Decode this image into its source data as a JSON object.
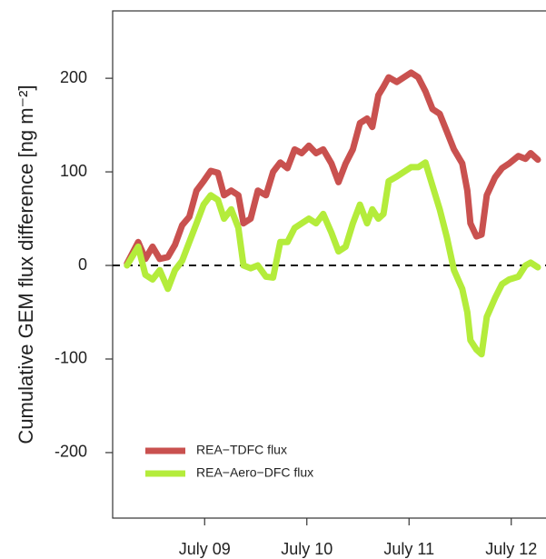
{
  "chart_data": {
    "type": "line",
    "y_label": "Cumulative GEM flux difference [ng m⁻²]",
    "x": [
      8.24,
      8.35,
      8.42,
      8.49,
      8.56,
      8.64,
      8.71,
      8.78,
      8.85,
      8.92,
      8.99,
      9.06,
      9.13,
      9.19,
      9.26,
      9.33,
      9.38,
      9.45,
      9.52,
      9.6,
      9.67,
      9.74,
      9.81,
      9.88,
      9.95,
      10.02,
      10.09,
      10.16,
      10.24,
      10.31,
      10.38,
      10.45,
      10.52,
      10.59,
      10.64,
      10.7,
      10.75,
      10.8,
      10.88,
      10.95,
      11.02,
      11.09,
      11.16,
      11.23,
      11.3,
      11.37,
      11.44,
      11.52,
      11.57,
      11.6,
      11.66,
      11.71,
      11.76,
      11.84,
      11.91,
      11.98,
      12.07,
      12.14,
      12.19,
      12.26
    ],
    "series": [
      {
        "name": "REA−TDFC flux",
        "color": "#c9514f",
        "values": [
          2,
          25,
          7,
          20,
          7,
          9,
          22,
          43,
          52,
          80,
          90,
          101,
          99,
          75,
          80,
          75,
          45,
          50,
          80,
          75,
          100,
          110,
          104,
          124,
          120,
          128,
          120,
          124,
          109,
          89,
          109,
          124,
          152,
          157,
          148,
          182,
          191,
          201,
          196,
          201,
          206,
          201,
          186,
          167,
          162,
          143,
          124,
          109,
          80,
          45,
          31,
          33,
          75,
          94,
          104,
          109,
          117,
          114,
          120,
          113
        ]
      },
      {
        "name": "REA−Aero−DFC flux",
        "color": "#b4ec3b",
        "values": [
          0,
          20,
          -10,
          -15,
          -5,
          -25,
          -5,
          5,
          25,
          45,
          65,
          75,
          70,
          50,
          60,
          40,
          0,
          -3,
          0,
          -12,
          -13,
          25,
          25,
          40,
          45,
          50,
          45,
          55,
          35,
          15,
          20,
          45,
          65,
          45,
          60,
          50,
          55,
          90,
          95,
          100,
          105,
          105,
          110,
          85,
          60,
          30,
          -5,
          -25,
          -50,
          -80,
          -90,
          -95,
          -55,
          -35,
          -20,
          -15,
          -12,
          0,
          3,
          -2
        ]
      }
    ],
    "xlim": [
      8.1,
      12.34
    ],
    "ylim": [
      -270,
      272
    ],
    "xticks": [
      {
        "value": 9,
        "label": "July 09"
      },
      {
        "value": 10,
        "label": "July 10"
      },
      {
        "value": 11,
        "label": "July 11"
      },
      {
        "value": 12,
        "label": "July 12"
      }
    ],
    "yticks": [
      -200,
      -100,
      0,
      100,
      200
    ],
    "reference_line": 0,
    "legend": "lower left"
  }
}
